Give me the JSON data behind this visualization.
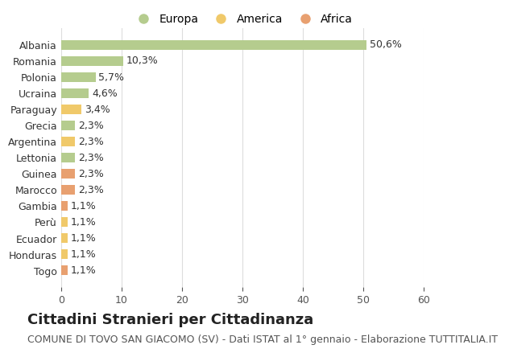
{
  "categories": [
    "Togo",
    "Honduras",
    "Ecuador",
    "Perù",
    "Gambia",
    "Marocco",
    "Guinea",
    "Lettonia",
    "Argentina",
    "Grecia",
    "Paraguay",
    "Ucraina",
    "Polonia",
    "Romania",
    "Albania"
  ],
  "values": [
    1.1,
    1.1,
    1.1,
    1.1,
    1.1,
    2.3,
    2.3,
    2.3,
    2.3,
    2.3,
    3.4,
    4.6,
    5.7,
    10.3,
    50.6
  ],
  "labels": [
    "1,1%",
    "1,1%",
    "1,1%",
    "1,1%",
    "1,1%",
    "2,3%",
    "2,3%",
    "2,3%",
    "2,3%",
    "2,3%",
    "3,4%",
    "4,6%",
    "5,7%",
    "10,3%",
    "50,6%"
  ],
  "continents": [
    "Africa",
    "America",
    "America",
    "America",
    "Africa",
    "Africa",
    "Africa",
    "Europa",
    "America",
    "Europa",
    "America",
    "Europa",
    "Europa",
    "Europa",
    "Europa"
  ],
  "colors": {
    "Europa": "#b5cc8e",
    "America": "#f0c96a",
    "Africa": "#e8a070"
  },
  "xlim": [
    0,
    60
  ],
  "xticks": [
    0,
    10,
    20,
    30,
    40,
    50,
    60
  ],
  "title": "Cittadini Stranieri per Cittadinanza",
  "subtitle": "COMUNE DI TOVO SAN GIACOMO (SV) - Dati ISTAT al 1° gennaio - Elaborazione TUTTITALIA.IT",
  "background_color": "#ffffff",
  "grid_color": "#dddddd",
  "bar_height": 0.6,
  "title_fontsize": 13,
  "subtitle_fontsize": 9,
  "label_fontsize": 9,
  "tick_fontsize": 9,
  "legend_fontsize": 10
}
